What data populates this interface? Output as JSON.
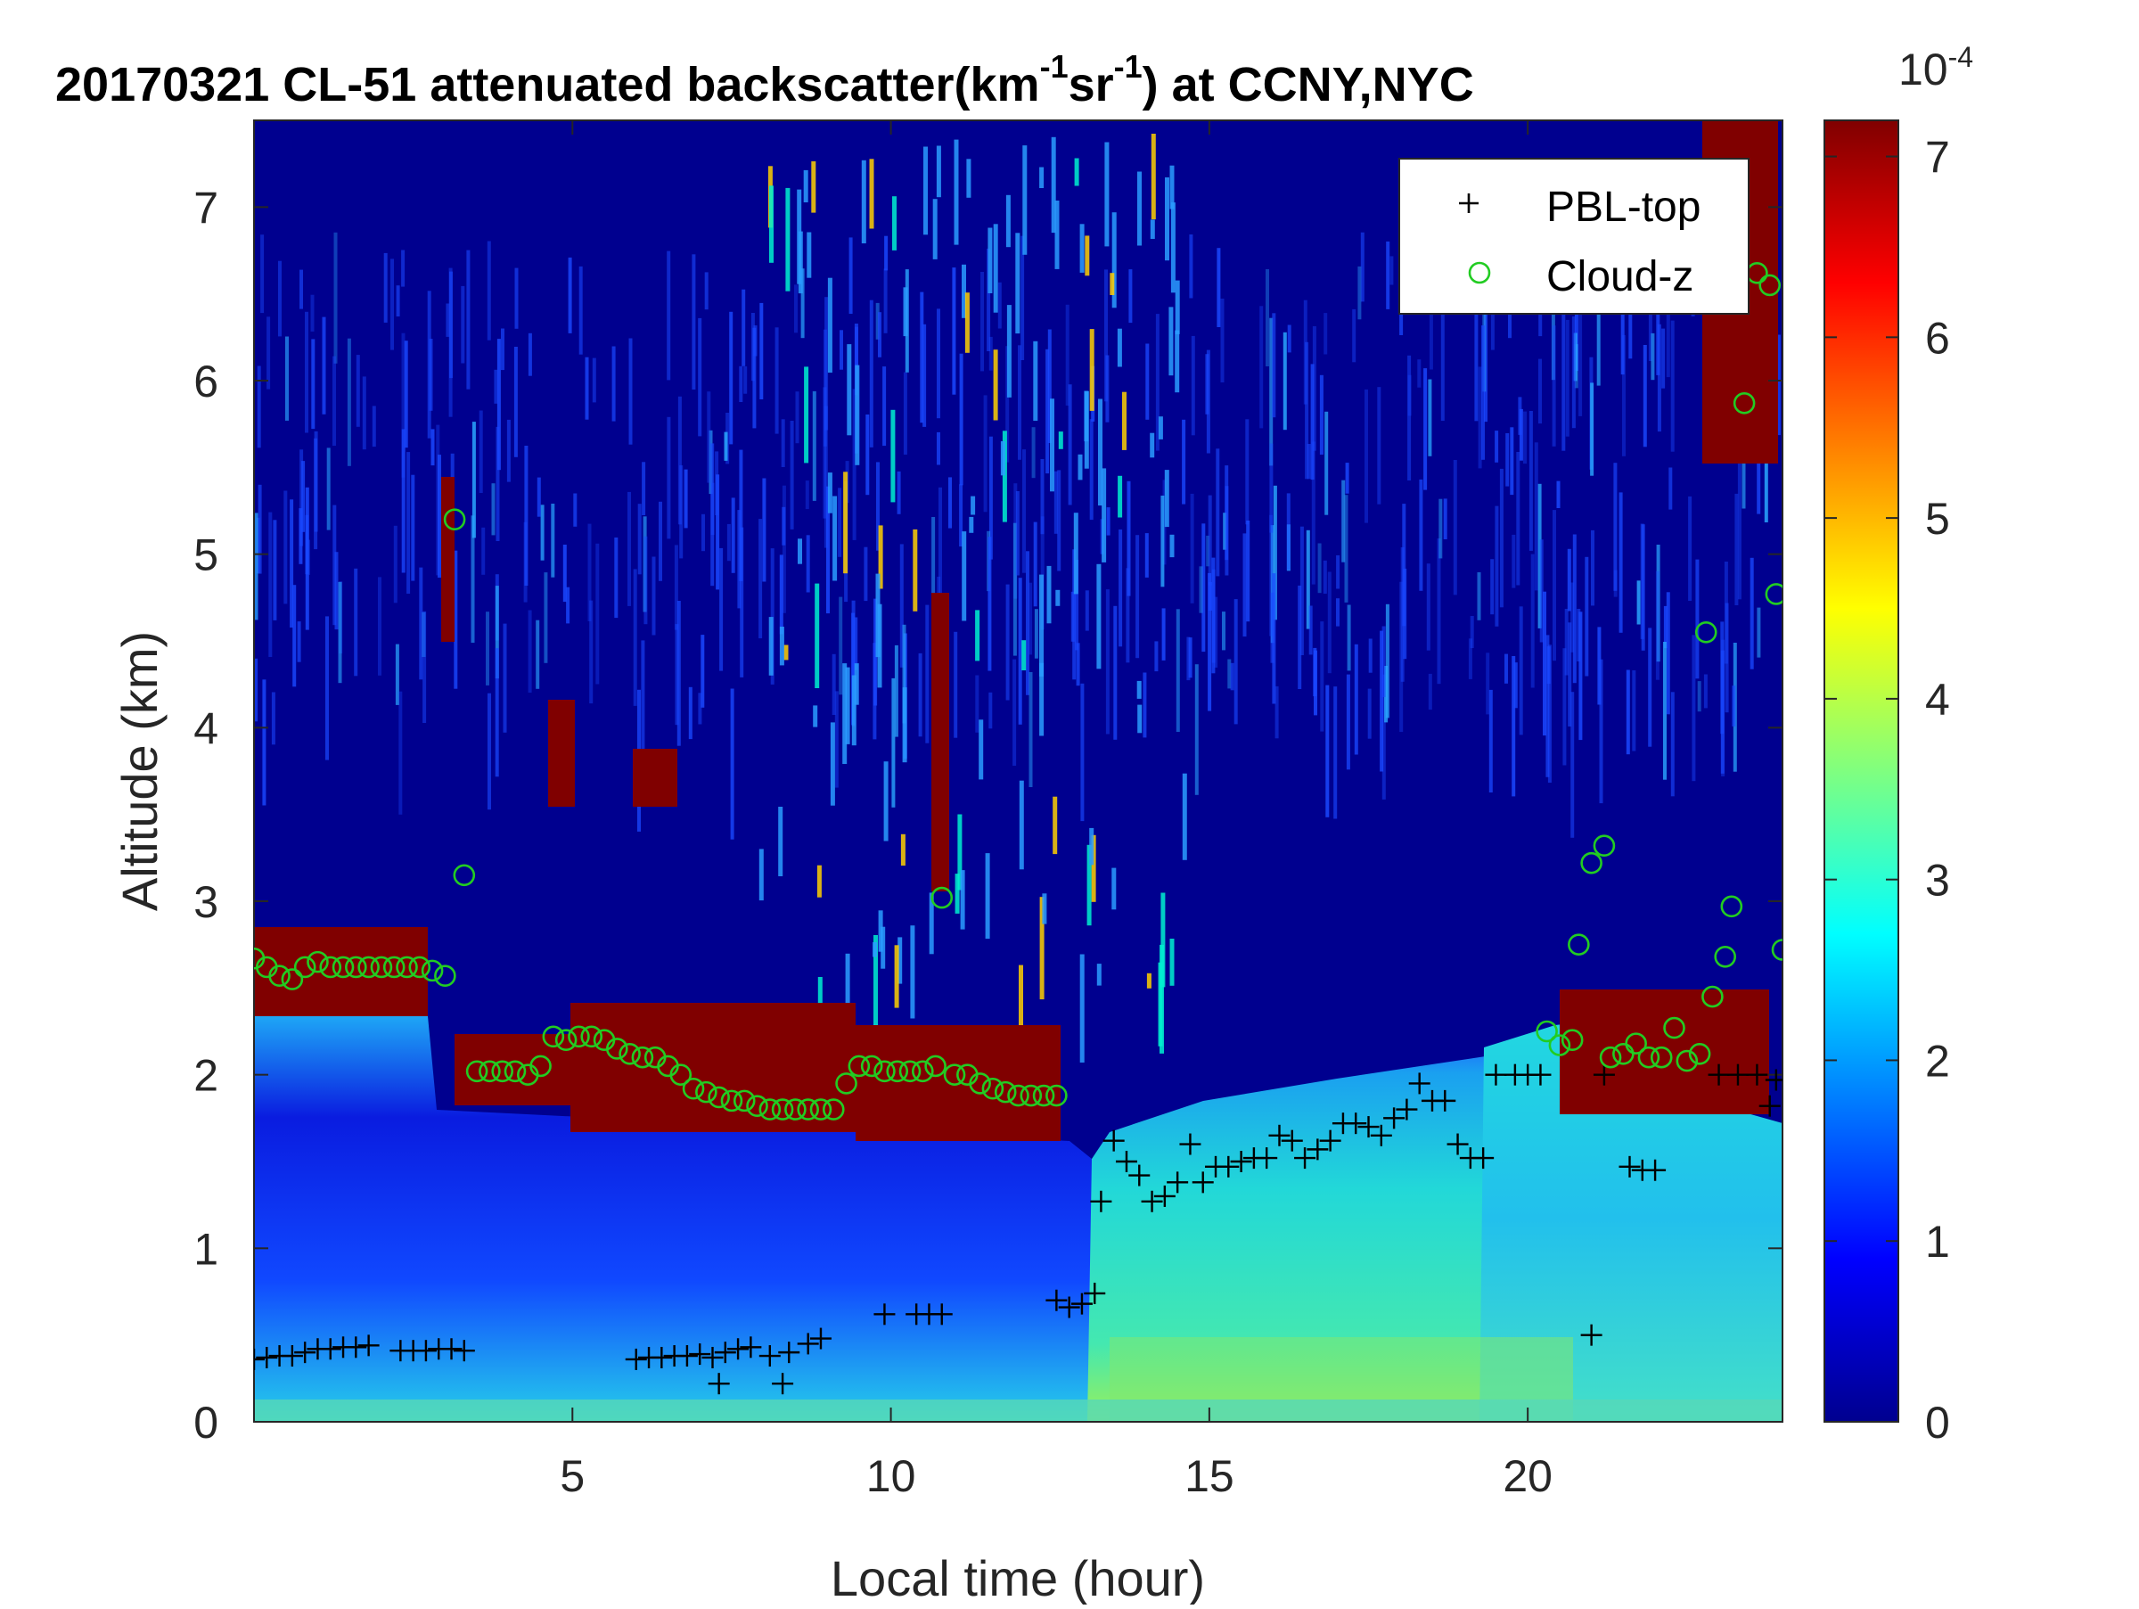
{
  "chart_data": {
    "type": "heatmap",
    "title": {
      "date": "20170321",
      "main": "CL-51 attenuated backscatter(km",
      "sup1": "-1",
      "mid": "sr",
      "sup2": "-1",
      "tail": ") at CCNY,NYC"
    },
    "xlabel": "Local time (hour)",
    "ylabel": "Altitude (km)",
    "xlim": [
      0,
      24
    ],
    "ylim": [
      0,
      7.5
    ],
    "xticks": [
      "5",
      "10",
      "15",
      "20"
    ],
    "yticks": [
      "0",
      "1",
      "2",
      "3",
      "4",
      "5",
      "6",
      "7"
    ],
    "colorbar": {
      "min": 0,
      "max": 0.00072,
      "ticks": [
        "0",
        "1",
        "2",
        "3",
        "4",
        "5",
        "6",
        "7"
      ],
      "exponent_base": "10",
      "exponent": "-4",
      "colormap": "jet"
    },
    "legend": {
      "position": "top-right",
      "entries": [
        {
          "label": "PBL-top",
          "marker": "plus",
          "color": "#000000"
        },
        {
          "label": "Cloud-z",
          "marker": "circle",
          "color": "#22cc22"
        }
      ]
    },
    "pbl_top": [
      [
        0.0,
        0.36
      ],
      [
        0.2,
        0.37
      ],
      [
        0.4,
        0.38
      ],
      [
        0.6,
        0.38
      ],
      [
        0.8,
        0.4
      ],
      [
        1.0,
        0.42
      ],
      [
        1.2,
        0.42
      ],
      [
        1.4,
        0.43
      ],
      [
        1.6,
        0.43
      ],
      [
        1.8,
        0.44
      ],
      [
        2.3,
        0.41
      ],
      [
        2.5,
        0.41
      ],
      [
        2.7,
        0.41
      ],
      [
        2.9,
        0.42
      ],
      [
        3.1,
        0.42
      ],
      [
        3.3,
        0.41
      ],
      [
        6.0,
        0.36
      ],
      [
        6.2,
        0.37
      ],
      [
        6.4,
        0.37
      ],
      [
        6.6,
        0.38
      ],
      [
        6.8,
        0.38
      ],
      [
        7.0,
        0.39
      ],
      [
        7.2,
        0.37
      ],
      [
        7.4,
        0.4
      ],
      [
        7.6,
        0.42
      ],
      [
        7.8,
        0.43
      ],
      [
        8.1,
        0.38
      ],
      [
        8.4,
        0.4
      ],
      [
        8.7,
        0.45
      ],
      [
        8.9,
        0.48
      ],
      [
        7.3,
        0.22
      ],
      [
        8.3,
        0.22
      ],
      [
        9.9,
        0.62
      ],
      [
        10.4,
        0.62
      ],
      [
        10.6,
        0.62
      ],
      [
        10.8,
        0.62
      ],
      [
        12.6,
        0.7
      ],
      [
        12.8,
        0.66
      ],
      [
        13.0,
        0.68
      ],
      [
        13.2,
        0.74
      ],
      [
        13.3,
        1.27
      ],
      [
        13.5,
        1.62
      ],
      [
        13.7,
        1.5
      ],
      [
        13.9,
        1.42
      ],
      [
        14.1,
        1.27
      ],
      [
        14.3,
        1.3
      ],
      [
        14.5,
        1.38
      ],
      [
        14.7,
        1.6
      ],
      [
        14.9,
        1.38
      ],
      [
        15.1,
        1.47
      ],
      [
        15.3,
        1.47
      ],
      [
        15.5,
        1.5
      ],
      [
        15.7,
        1.52
      ],
      [
        15.9,
        1.52
      ],
      [
        16.1,
        1.65
      ],
      [
        16.3,
        1.62
      ],
      [
        16.5,
        1.52
      ],
      [
        16.7,
        1.57
      ],
      [
        16.9,
        1.62
      ],
      [
        17.1,
        1.72
      ],
      [
        17.3,
        1.72
      ],
      [
        17.5,
        1.7
      ],
      [
        17.7,
        1.65
      ],
      [
        17.9,
        1.75
      ],
      [
        18.1,
        1.8
      ],
      [
        18.3,
        1.95
      ],
      [
        18.5,
        1.85
      ],
      [
        18.7,
        1.85
      ],
      [
        18.9,
        1.6
      ],
      [
        19.1,
        1.52
      ],
      [
        19.3,
        1.52
      ],
      [
        19.5,
        2.0
      ],
      [
        19.8,
        2.0
      ],
      [
        20.0,
        2.0
      ],
      [
        20.2,
        2.0
      ],
      [
        21.0,
        0.5
      ],
      [
        21.2,
        2.0
      ],
      [
        21.6,
        1.47
      ],
      [
        21.8,
        1.45
      ],
      [
        22.0,
        1.45
      ],
      [
        23.0,
        2.0
      ],
      [
        23.3,
        2.0
      ],
      [
        23.6,
        2.0
      ],
      [
        23.8,
        1.82
      ],
      [
        23.9,
        1.97
      ]
    ],
    "cloud_z": [
      [
        0.0,
        2.67
      ],
      [
        0.2,
        2.62
      ],
      [
        0.4,
        2.57
      ],
      [
        0.6,
        2.55
      ],
      [
        0.8,
        2.62
      ],
      [
        1.0,
        2.65
      ],
      [
        1.2,
        2.62
      ],
      [
        1.4,
        2.62
      ],
      [
        1.6,
        2.62
      ],
      [
        1.8,
        2.62
      ],
      [
        2.0,
        2.62
      ],
      [
        2.2,
        2.62
      ],
      [
        2.4,
        2.62
      ],
      [
        2.6,
        2.62
      ],
      [
        2.8,
        2.6
      ],
      [
        3.0,
        2.57
      ],
      [
        3.15,
        5.2
      ],
      [
        3.3,
        3.15
      ],
      [
        3.5,
        2.02
      ],
      [
        3.7,
        2.02
      ],
      [
        3.9,
        2.02
      ],
      [
        4.1,
        2.02
      ],
      [
        4.3,
        2.0
      ],
      [
        4.5,
        2.05
      ],
      [
        4.7,
        2.22
      ],
      [
        4.9,
        2.2
      ],
      [
        5.1,
        2.22
      ],
      [
        5.3,
        2.22
      ],
      [
        5.5,
        2.2
      ],
      [
        5.7,
        2.15
      ],
      [
        5.9,
        2.12
      ],
      [
        6.1,
        2.1
      ],
      [
        6.3,
        2.1
      ],
      [
        6.5,
        2.05
      ],
      [
        6.7,
        2.0
      ],
      [
        6.9,
        1.92
      ],
      [
        7.1,
        1.9
      ],
      [
        7.3,
        1.87
      ],
      [
        7.5,
        1.85
      ],
      [
        7.7,
        1.85
      ],
      [
        7.9,
        1.82
      ],
      [
        8.1,
        1.8
      ],
      [
        8.3,
        1.8
      ],
      [
        8.5,
        1.8
      ],
      [
        8.7,
        1.8
      ],
      [
        8.9,
        1.8
      ],
      [
        9.1,
        1.8
      ],
      [
        9.3,
        1.95
      ],
      [
        9.5,
        2.05
      ],
      [
        9.7,
        2.05
      ],
      [
        9.9,
        2.02
      ],
      [
        10.1,
        2.02
      ],
      [
        10.3,
        2.02
      ],
      [
        10.5,
        2.02
      ],
      [
        10.7,
        2.05
      ],
      [
        10.8,
        3.02
      ],
      [
        11.0,
        2.0
      ],
      [
        11.2,
        2.0
      ],
      [
        11.4,
        1.95
      ],
      [
        11.6,
        1.92
      ],
      [
        11.8,
        1.9
      ],
      [
        12.0,
        1.88
      ],
      [
        12.2,
        1.88
      ],
      [
        12.4,
        1.88
      ],
      [
        12.6,
        1.88
      ],
      [
        20.3,
        2.25
      ],
      [
        20.5,
        2.17
      ],
      [
        20.7,
        2.2
      ],
      [
        20.8,
        2.75
      ],
      [
        21.0,
        3.22
      ],
      [
        21.2,
        3.32
      ],
      [
        21.3,
        2.1
      ],
      [
        21.5,
        2.12
      ],
      [
        21.7,
        2.18
      ],
      [
        21.9,
        2.1
      ],
      [
        22.1,
        2.1
      ],
      [
        22.3,
        2.27
      ],
      [
        22.5,
        2.08
      ],
      [
        22.7,
        2.12
      ],
      [
        22.8,
        4.55
      ],
      [
        22.9,
        2.45
      ],
      [
        23.1,
        2.68
      ],
      [
        23.2,
        2.97
      ],
      [
        23.4,
        5.87
      ],
      [
        23.6,
        6.62
      ],
      [
        23.8,
        6.55
      ],
      [
        23.9,
        4.77
      ],
      [
        24.0,
        2.72
      ]
    ]
  }
}
